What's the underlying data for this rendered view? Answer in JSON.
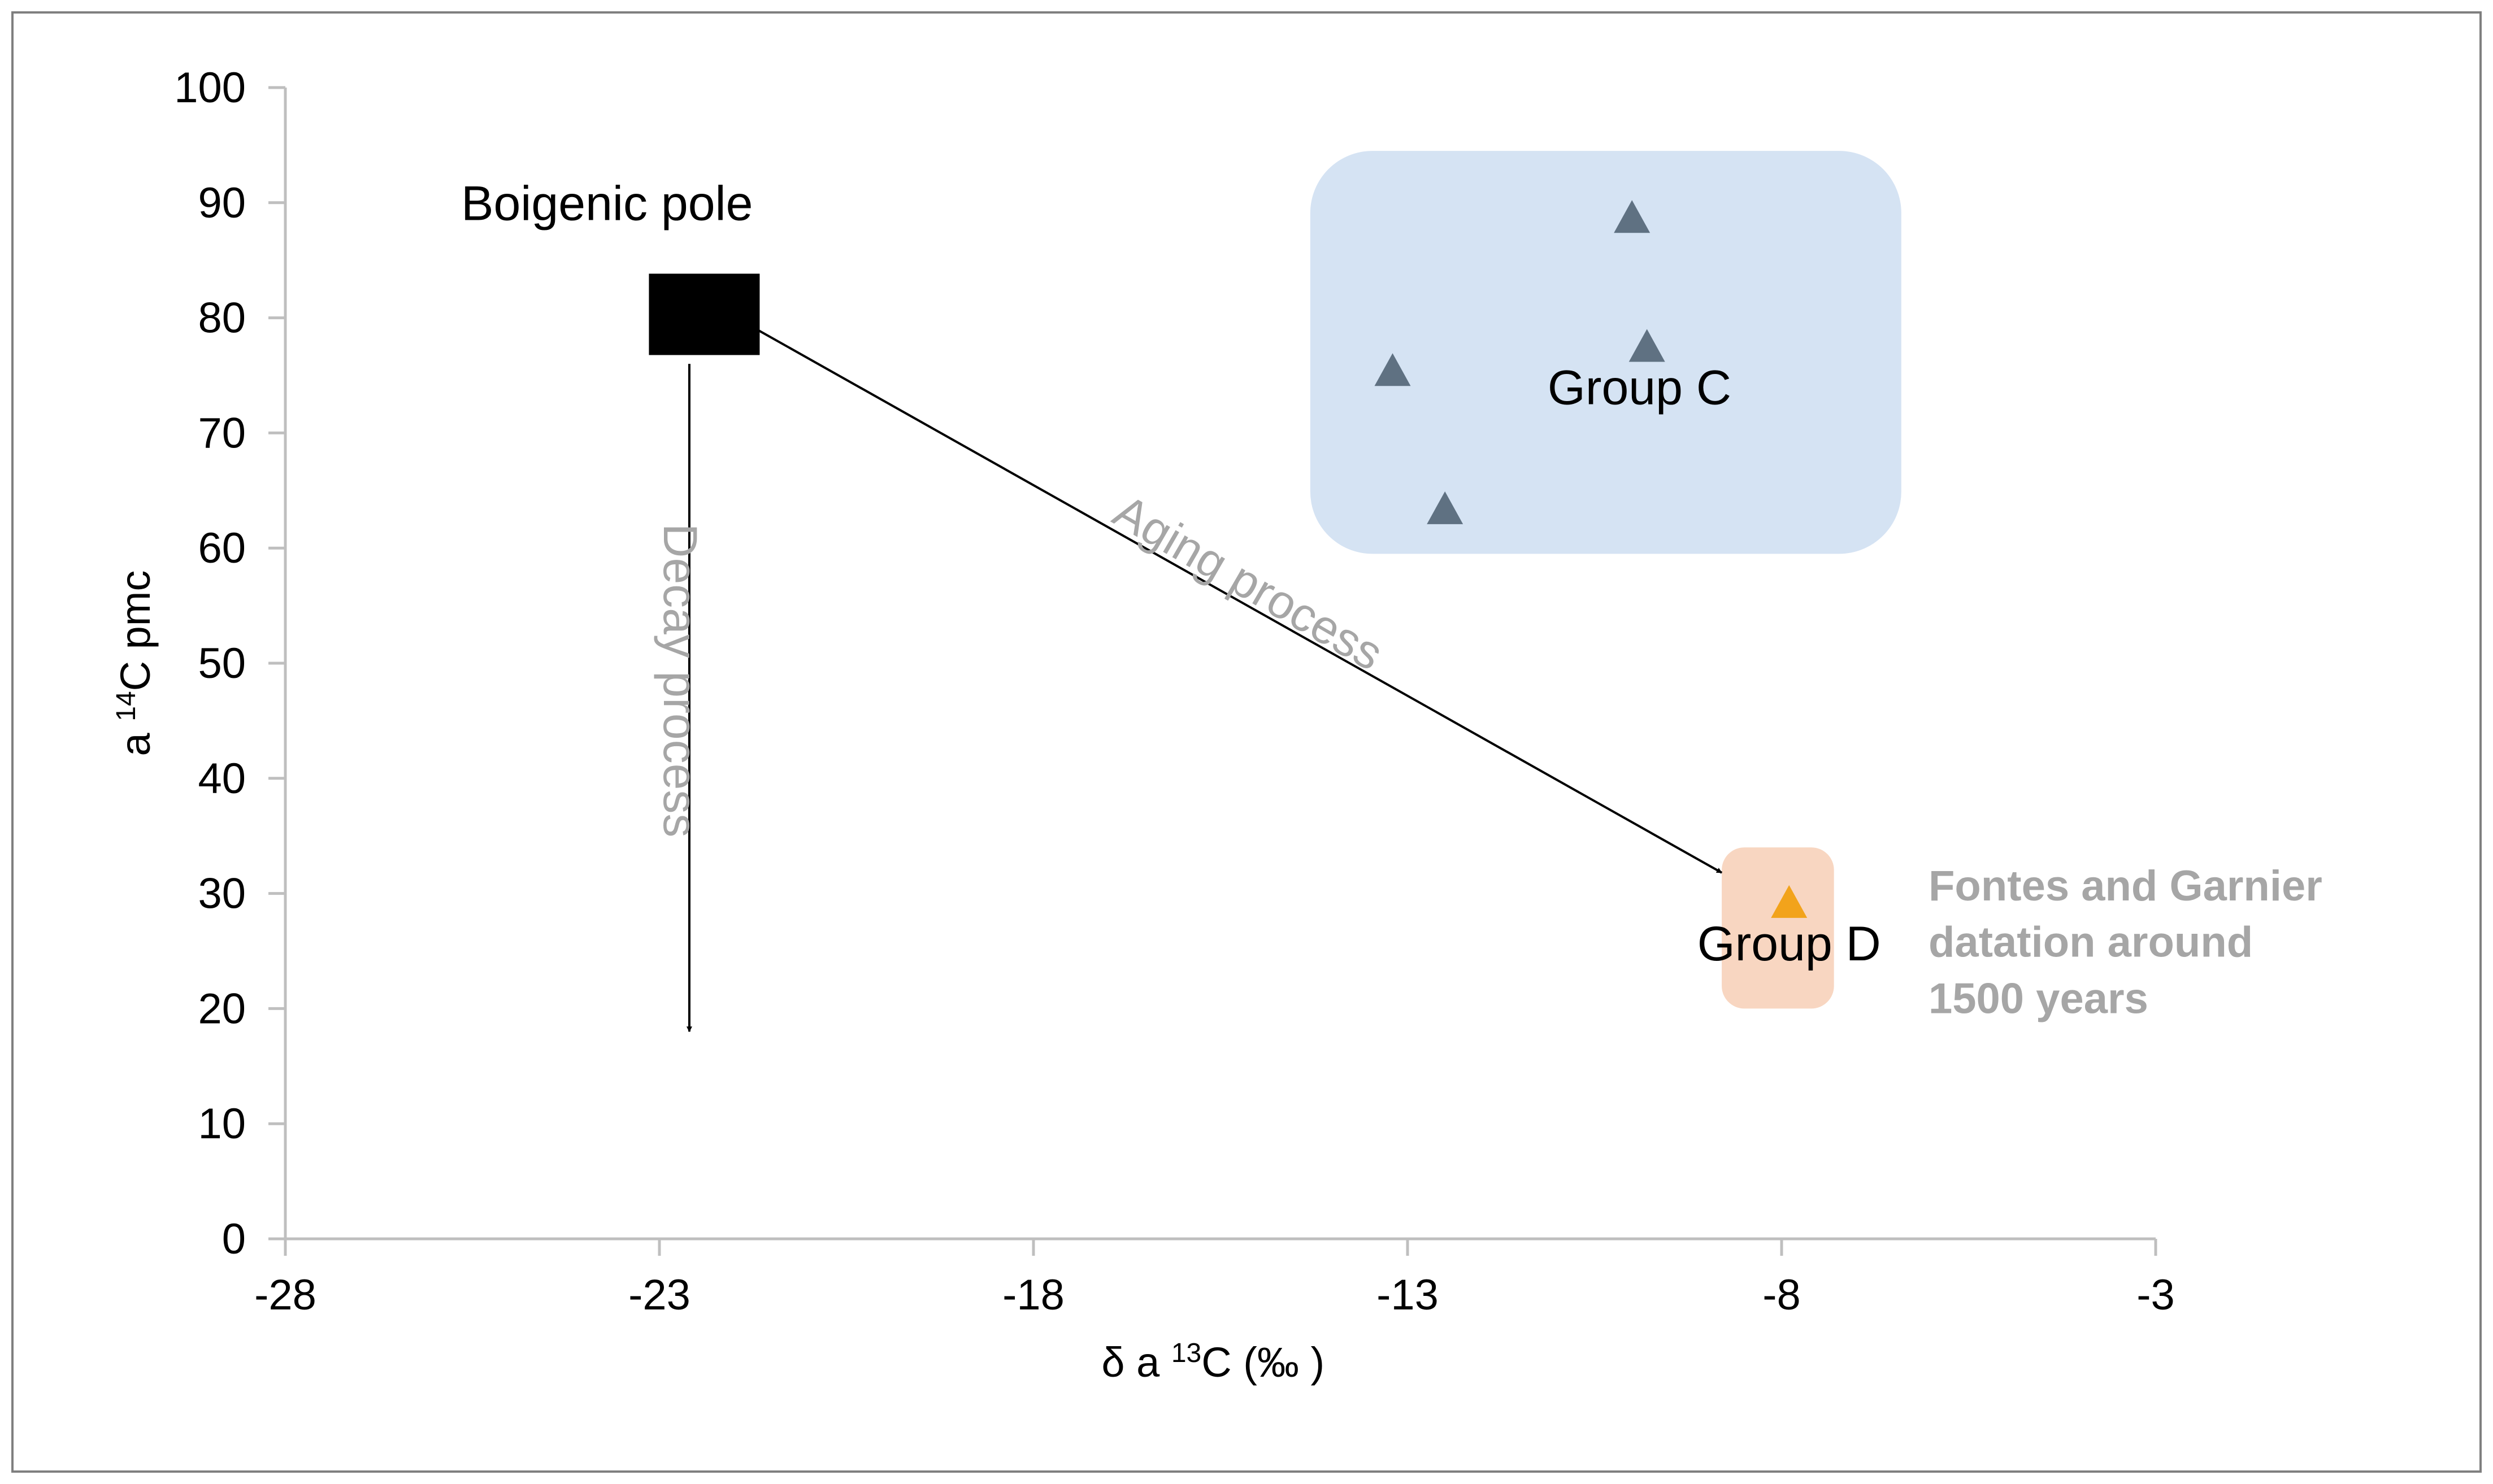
{
  "chart_data": {
    "type": "scatter",
    "xlabel_parts": [
      "δ a ",
      "13",
      "C (‰ )"
    ],
    "ylabel_parts": [
      "a ",
      "14",
      "C pmc"
    ],
    "xlim": [
      -28,
      -3
    ],
    "ylim": [
      0,
      100
    ],
    "x_ticks": [
      -28,
      -23,
      -18,
      -13,
      -8,
      -3
    ],
    "x_tick_labels": [
      "-28",
      "-23",
      "-18",
      "-13",
      "-8",
      "-3"
    ],
    "y_ticks": [
      0,
      10,
      20,
      30,
      40,
      50,
      60,
      70,
      80,
      90,
      100
    ],
    "y_tick_labels": [
      "0",
      "10",
      "20",
      "30",
      "40",
      "50",
      "60",
      "70",
      "80",
      "90",
      "100"
    ],
    "series": [
      {
        "name": "Group C",
        "marker": "triangle",
        "color": "#5f7182",
        "points": [
          {
            "x": -13.2,
            "y": 75.5
          },
          {
            "x": -12.5,
            "y": 63.5
          },
          {
            "x": -10.0,
            "y": 88.8
          },
          {
            "x": -9.8,
            "y": 77.6
          }
        ]
      },
      {
        "name": "Group D",
        "marker": "triangle",
        "color": "#f2a31b",
        "points": [
          {
            "x": -7.9,
            "y": 29.3
          }
        ]
      }
    ],
    "biogenic_pole": {
      "label": "Boigenic pole",
      "x": -22.4,
      "y": 80.3,
      "color": "#000000"
    },
    "regions": [
      {
        "label": "Group C",
        "x_range": [
          -14.3,
          -6.4
        ],
        "y_range": [
          59.5,
          94.5
        ],
        "color": "#d5e3f3"
      },
      {
        "label": "Group D",
        "x_range": [
          -8.8,
          -7.3
        ],
        "y_range": [
          20.0,
          34.0
        ],
        "color": "#f8d6c1"
      }
    ],
    "arrows": [
      {
        "label": "Decay process",
        "from": {
          "x": -22.6,
          "y": 76.0
        },
        "to": {
          "x": -22.6,
          "y": 18.0
        }
      },
      {
        "label": "Aging process",
        "from": {
          "x": -21.7,
          "y": 79.0
        },
        "to": {
          "x": -8.8,
          "y": 31.8
        }
      }
    ],
    "annotation_lines": [
      "Fontes and  Garnier",
      "datation around",
      "1500 years"
    ],
    "annotation_color": "#a6a6a6"
  }
}
